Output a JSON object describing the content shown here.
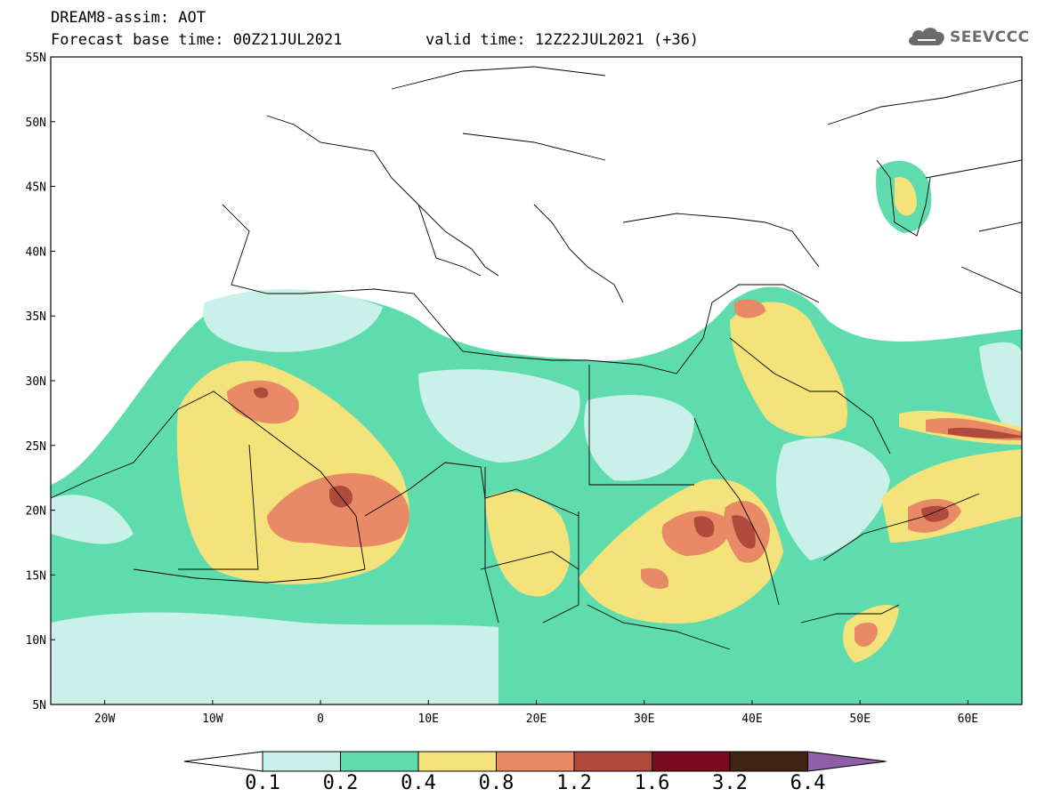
{
  "header": {
    "model_line": "DREAM8-assim: AOT",
    "base_time_line": "Forecast base time: 00Z21JUL2021",
    "valid_time_line": "valid time: 12Z22JUL2021 (+36)"
  },
  "logo": {
    "text": "SEEVCCC",
    "icon": "cloud-icon"
  },
  "map": {
    "lat_labels": [
      "55N",
      "50N",
      "45N",
      "40N",
      "35N",
      "30N",
      "25N",
      "20N",
      "15N",
      "10N",
      "5N"
    ],
    "lon_labels": [
      "20W",
      "10W",
      "0",
      "10E",
      "20E",
      "30E",
      "40E",
      "50E",
      "60E"
    ],
    "lat_range": [
      5,
      55
    ],
    "lon_range": [
      -25,
      65
    ]
  },
  "colorbar": {
    "ticks": [
      "0.1",
      "0.2",
      "0.4",
      "0.8",
      "1.2",
      "1.6",
      "3.2",
      "6.4"
    ],
    "colors": [
      "#c9f0e9",
      "#5fdcae",
      "#f4e27a",
      "#e88a66",
      "#b04a3b",
      "#7a0a1e",
      "#3f2412"
    ],
    "low_extend_color": "#ffffff",
    "high_extend_color": "#8e5fa8"
  },
  "colors": {
    "very_low": "#c9f0e9",
    "low": "#5fdcae",
    "medium": "#f4e27a",
    "high": "#e88a66",
    "very_high": "#b04a3b",
    "extreme": "#7a0a1e"
  }
}
